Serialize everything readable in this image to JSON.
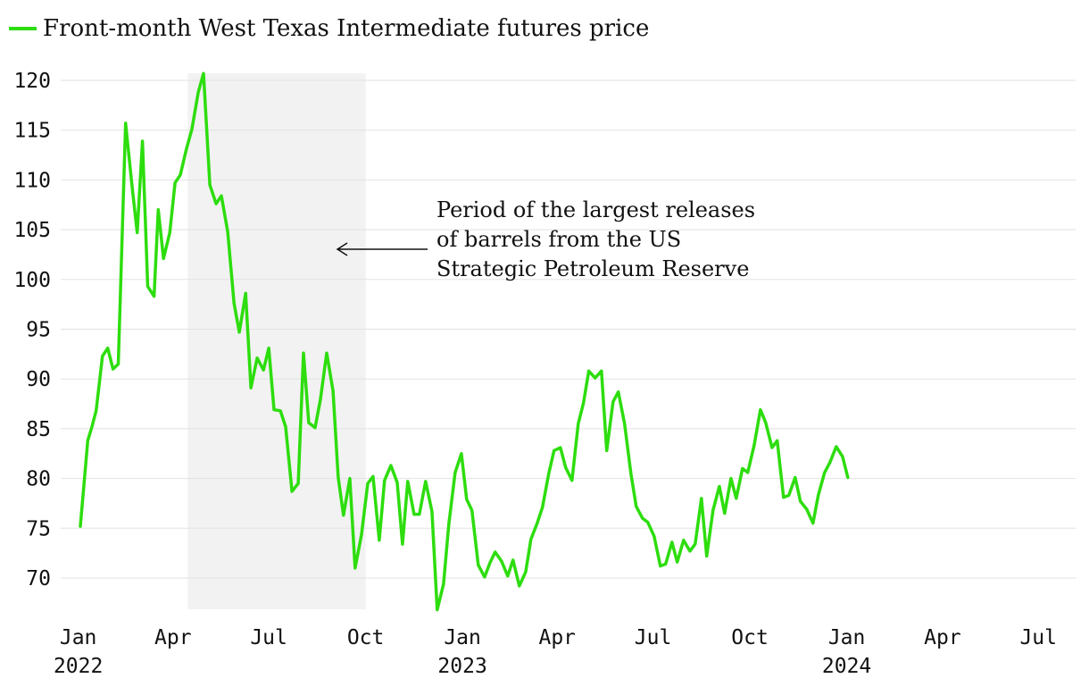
{
  "chart_data": {
    "type": "line",
    "legend": {
      "label": "Front-month West Texas Intermediate futures price",
      "position": "top-left",
      "color": "#2ddd0e"
    },
    "y_ticks": [
      "70",
      "75",
      "80",
      "85",
      "90",
      "95",
      "100",
      "105",
      "110",
      "115",
      "120"
    ],
    "ylim": [
      66.5,
      121
    ],
    "xlim": [
      "2022-01-03",
      "2024-07-22"
    ],
    "grid": "horizontal",
    "x_ticks": [
      {
        "label": "Jan",
        "year": "2022",
        "date": "2022-01-01"
      },
      {
        "label": "Apr",
        "year": "",
        "date": "2022-04-01"
      },
      {
        "label": "Jul",
        "year": "",
        "date": "2022-07-01"
      },
      {
        "label": "Oct",
        "year": "",
        "date": "2022-10-01"
      },
      {
        "label": "Jan",
        "year": "2023",
        "date": "2023-01-01"
      },
      {
        "label": "Apr",
        "year": "",
        "date": "2023-04-01"
      },
      {
        "label": "Jul",
        "year": "",
        "date": "2023-07-01"
      },
      {
        "label": "Oct",
        "year": "",
        "date": "2023-10-01"
      },
      {
        "label": "Jan",
        "year": "2024",
        "date": "2024-01-01"
      },
      {
        "label": "Apr",
        "year": "",
        "date": "2024-04-01"
      },
      {
        "label": "Jul",
        "year": "",
        "date": "2024-07-01"
      }
    ],
    "shaded_period": {
      "start": "2022-04-15",
      "end": "2022-10-01",
      "color": "#f2f2f2"
    },
    "annotation": {
      "lines": [
        "Period of the largest releases",
        "of barrels from the US",
        "Strategic Petroleum Reserve"
      ]
    },
    "series": [
      {
        "name": "Front-month West Texas Intermediate futures price",
        "color": "#2ddd0e",
        "points": [
          [
            "2022-01-03",
            75.2
          ],
          [
            "2022-01-06",
            78.8
          ],
          [
            "2022-01-10",
            83.8
          ],
          [
            "2022-01-14",
            85.2
          ],
          [
            "2022-01-18",
            86.8
          ],
          [
            "2022-01-24",
            92.3
          ],
          [
            "2022-01-29",
            93.1
          ],
          [
            "2022-02-03",
            91.0
          ],
          [
            "2022-02-08",
            91.5
          ],
          [
            "2022-02-15",
            115.7
          ],
          [
            "2022-02-21",
            109.5
          ],
          [
            "2022-02-26",
            104.7
          ],
          [
            "2022-03-03",
            113.9
          ],
          [
            "2022-03-08",
            99.3
          ],
          [
            "2022-03-14",
            98.3
          ],
          [
            "2022-03-18",
            107.0
          ],
          [
            "2022-03-23",
            102.1
          ],
          [
            "2022-03-29",
            104.7
          ],
          [
            "2022-04-03",
            109.7
          ],
          [
            "2022-04-08",
            110.5
          ],
          [
            "2022-04-14",
            113.2
          ],
          [
            "2022-04-19",
            115.1
          ],
          [
            "2022-04-25",
            118.8
          ],
          [
            "2022-04-30",
            120.7
          ],
          [
            "2022-05-06",
            109.5
          ],
          [
            "2022-05-12",
            107.6
          ],
          [
            "2022-05-17",
            108.4
          ],
          [
            "2022-05-23",
            104.8
          ],
          [
            "2022-05-29",
            97.6
          ],
          [
            "2022-06-03",
            94.7
          ],
          [
            "2022-06-09",
            98.6
          ],
          [
            "2022-06-14",
            89.1
          ],
          [
            "2022-06-20",
            92.1
          ],
          [
            "2022-06-26",
            90.9
          ],
          [
            "2022-07-01",
            93.1
          ],
          [
            "2022-07-06",
            86.9
          ],
          [
            "2022-07-12",
            86.8
          ],
          [
            "2022-07-17",
            85.2
          ],
          [
            "2022-07-23",
            78.7
          ],
          [
            "2022-07-29",
            79.5
          ],
          [
            "2022-08-03",
            92.6
          ],
          [
            "2022-08-08",
            85.6
          ],
          [
            "2022-08-14",
            85.1
          ],
          [
            "2022-08-19",
            87.9
          ],
          [
            "2022-08-25",
            92.6
          ],
          [
            "2022-08-31",
            88.8
          ],
          [
            "2022-09-05",
            80.1
          ],
          [
            "2022-09-10",
            76.3
          ],
          [
            "2022-09-16",
            80.0
          ],
          [
            "2022-09-21",
            71.0
          ],
          [
            "2022-09-27",
            74.3
          ],
          [
            "2022-10-03",
            79.5
          ],
          [
            "2022-10-08",
            80.2
          ],
          [
            "2022-10-14",
            73.8
          ],
          [
            "2022-10-19",
            79.8
          ],
          [
            "2022-10-25",
            81.3
          ],
          [
            "2022-10-31",
            79.6
          ],
          [
            "2022-11-05",
            73.4
          ],
          [
            "2022-11-10",
            79.7
          ],
          [
            "2022-11-16",
            76.4
          ],
          [
            "2022-11-21",
            76.4
          ],
          [
            "2022-11-27",
            79.7
          ],
          [
            "2022-12-03",
            76.7
          ],
          [
            "2022-12-08",
            66.8
          ],
          [
            "2022-12-14",
            69.4
          ],
          [
            "2022-12-19",
            75.4
          ],
          [
            "2022-12-25",
            80.6
          ],
          [
            "2022-12-31",
            82.5
          ],
          [
            "2023-01-05",
            77.9
          ],
          [
            "2023-01-10",
            76.8
          ],
          [
            "2023-01-16",
            71.3
          ],
          [
            "2023-01-22",
            70.1
          ],
          [
            "2023-01-27",
            71.5
          ],
          [
            "2023-02-01",
            72.6
          ],
          [
            "2023-02-07",
            71.7
          ],
          [
            "2023-02-13",
            70.2
          ],
          [
            "2023-02-18",
            71.8
          ],
          [
            "2023-02-24",
            69.2
          ],
          [
            "2023-03-02",
            70.6
          ],
          [
            "2023-03-07",
            73.9
          ],
          [
            "2023-03-13",
            75.5
          ],
          [
            "2023-03-18",
            77.1
          ],
          [
            "2023-03-24",
            80.5
          ],
          [
            "2023-03-29",
            82.8
          ],
          [
            "2023-04-04",
            83.1
          ],
          [
            "2023-04-09",
            81.1
          ],
          [
            "2023-04-15",
            79.8
          ],
          [
            "2023-04-21",
            85.5
          ],
          [
            "2023-04-26",
            87.6
          ],
          [
            "2023-05-01",
            90.8
          ],
          [
            "2023-05-07",
            90.1
          ],
          [
            "2023-05-13",
            90.8
          ],
          [
            "2023-05-18",
            82.8
          ],
          [
            "2023-05-24",
            87.7
          ],
          [
            "2023-05-29",
            88.7
          ],
          [
            "2023-06-04",
            85.5
          ],
          [
            "2023-06-10",
            80.5
          ],
          [
            "2023-06-15",
            77.2
          ],
          [
            "2023-06-21",
            76.0
          ],
          [
            "2023-06-26",
            75.6
          ],
          [
            "2023-07-02",
            74.2
          ],
          [
            "2023-07-08",
            71.2
          ],
          [
            "2023-07-13",
            71.4
          ],
          [
            "2023-07-19",
            73.6
          ],
          [
            "2023-07-24",
            71.6
          ],
          [
            "2023-07-30",
            73.8
          ],
          [
            "2023-08-05",
            72.7
          ],
          [
            "2023-08-10",
            73.4
          ],
          [
            "2023-08-16",
            78.0
          ],
          [
            "2023-08-21",
            72.2
          ],
          [
            "2023-08-27",
            76.8
          ],
          [
            "2023-09-02",
            79.2
          ],
          [
            "2023-09-07",
            76.5
          ],
          [
            "2023-09-13",
            80.0
          ],
          [
            "2023-09-18",
            78.0
          ],
          [
            "2023-09-24",
            81.0
          ],
          [
            "2023-09-29",
            80.6
          ],
          [
            "2023-10-05",
            83.3
          ],
          [
            "2023-10-11",
            86.9
          ],
          [
            "2023-10-16",
            85.6
          ],
          [
            "2023-10-22",
            83.1
          ],
          [
            "2023-10-27",
            83.8
          ],
          [
            "2023-11-02",
            78.1
          ],
          [
            "2023-11-07",
            78.3
          ],
          [
            "2023-11-13",
            80.1
          ],
          [
            "2023-11-18",
            77.7
          ],
          [
            "2023-11-24",
            76.9
          ],
          [
            "2023-11-30",
            75.5
          ],
          [
            "2023-12-05",
            78.3
          ],
          [
            "2023-12-11",
            80.6
          ],
          [
            "2023-12-16",
            81.6
          ],
          [
            "2023-12-22",
            83.2
          ],
          [
            "2023-12-28",
            82.2
          ],
          [
            "2024-01-02",
            80.1
          ]
        ]
      }
    ]
  }
}
